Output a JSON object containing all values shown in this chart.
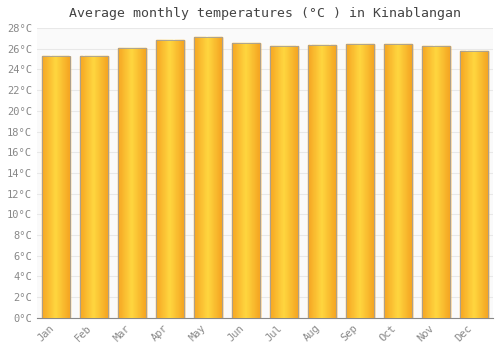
{
  "title": "Average monthly temperatures (°C ) in Kinablangan",
  "months": [
    "Jan",
    "Feb",
    "Mar",
    "Apr",
    "May",
    "Jun",
    "Jul",
    "Aug",
    "Sep",
    "Oct",
    "Nov",
    "Dec"
  ],
  "values": [
    25.3,
    25.3,
    26.1,
    26.8,
    27.1,
    26.6,
    26.3,
    26.4,
    26.5,
    26.5,
    26.3,
    25.8
  ],
  "ylim": [
    0,
    28
  ],
  "yticks": [
    0,
    2,
    4,
    6,
    8,
    10,
    12,
    14,
    16,
    18,
    20,
    22,
    24,
    26,
    28
  ],
  "bar_color_center": "#FFD740",
  "bar_color_edge": "#F5A623",
  "bar_border_color": "#A0A0A0",
  "background_color": "#FFFFFF",
  "plot_bg_color": "#FAFAFA",
  "grid_color": "#E8E8E8",
  "title_fontsize": 9.5,
  "tick_fontsize": 7.5,
  "tick_color": "#888888"
}
